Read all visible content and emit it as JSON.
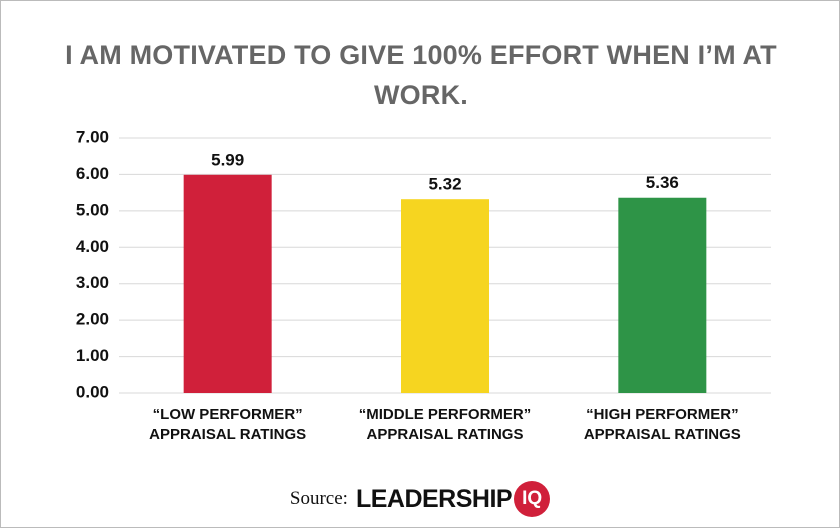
{
  "chart_data": {
    "type": "bar",
    "title": "I AM MOTIVATED TO GIVE 100% EFFORT WHEN I’M AT WORK.",
    "categories": [
      "“LOW PERFORMER”\nAPPRAISAL RATINGS",
      "“MIDDLE PERFORMER”\nAPPRAISAL RATINGS",
      "“HIGH PERFORMER”\nAPPRAISAL RATINGS"
    ],
    "values": [
      5.99,
      5.32,
      5.36
    ],
    "colors": [
      "#d0203a",
      "#f6d520",
      "#2e9447"
    ],
    "ylim": [
      0,
      7
    ],
    "yticks": [
      {
        "value": 0,
        "label": "0.00"
      },
      {
        "value": 1,
        "label": "1.00"
      },
      {
        "value": 2,
        "label": "2.00"
      },
      {
        "value": 3,
        "label": "3.00"
      },
      {
        "value": 4,
        "label": "4.00"
      },
      {
        "value": 5,
        "label": "5.00"
      },
      {
        "value": 6,
        "label": "6.00"
      },
      {
        "value": 7,
        "label": "7.00"
      }
    ],
    "grid": true,
    "source": "Source:",
    "source_brand": "LEADERSHIP",
    "source_brand_mark": "IQ"
  }
}
